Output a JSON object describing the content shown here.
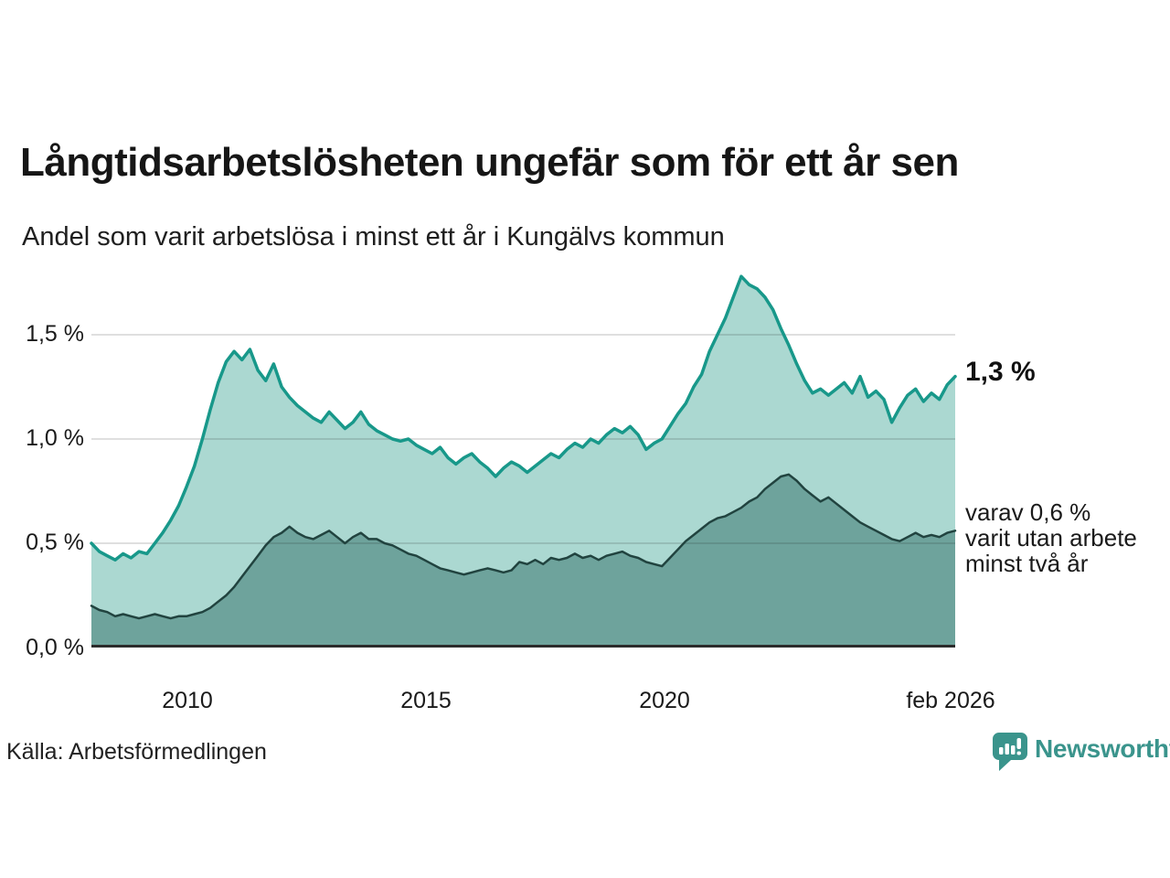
{
  "header": {
    "title": "Långtidsarbetslösheten ungefär som för ett år sen",
    "subtitle": "Andel som varit arbetslösa i minst ett år i Kungälvs kommun"
  },
  "chart_data": {
    "type": "area",
    "title": "Långtidsarbetslösheten ungefär som för ett år sen",
    "subtitle": "Andel som varit arbetslösa i minst ett år i Kungälvs kommun",
    "x_unit": "year",
    "x_start": 2008.0,
    "x_end": 2026.083,
    "ylim": [
      0,
      1.8333
    ],
    "grid": true,
    "y_ticks": [
      {
        "value": 1.5,
        "label": "1,5 %"
      },
      {
        "value": 1.0,
        "label": "1,0 %"
      },
      {
        "value": 0.5,
        "label": "0,5 %"
      },
      {
        "value": 0.0,
        "label": "0,0 %"
      }
    ],
    "x_ticks": [
      {
        "value": 2010,
        "label": "2010"
      },
      {
        "value": 2015,
        "label": "2015"
      },
      {
        "value": 2020,
        "label": "2020"
      },
      {
        "value": 2026.083,
        "label": "feb 2026"
      }
    ],
    "gridline_color": "rgba(30,30,30,0.14)",
    "baseline_color": "#2b2b2b",
    "series": [
      {
        "name": "Andel som varit arbetslösa i minst ett år",
        "stroke": "#18988a",
        "stroke_width": 3.5,
        "fill": "#abd8d1",
        "latest_value_pct": 1.3,
        "values": [
          0.5,
          0.46,
          0.44,
          0.42,
          0.45,
          0.43,
          0.46,
          0.45,
          0.5,
          0.55,
          0.61,
          0.68,
          0.77,
          0.87,
          1.0,
          1.14,
          1.27,
          1.37,
          1.42,
          1.38,
          1.43,
          1.33,
          1.28,
          1.36,
          1.25,
          1.2,
          1.16,
          1.13,
          1.1,
          1.08,
          1.13,
          1.09,
          1.05,
          1.08,
          1.13,
          1.07,
          1.04,
          1.02,
          1.0,
          0.99,
          1.0,
          0.97,
          0.95,
          0.93,
          0.96,
          0.91,
          0.88,
          0.91,
          0.93,
          0.89,
          0.86,
          0.82,
          0.86,
          0.89,
          0.87,
          0.84,
          0.87,
          0.9,
          0.93,
          0.91,
          0.95,
          0.98,
          0.96,
          1.0,
          0.98,
          1.02,
          1.05,
          1.03,
          1.06,
          1.02,
          0.95,
          0.98,
          1.0,
          1.06,
          1.12,
          1.17,
          1.25,
          1.31,
          1.42,
          1.5,
          1.58,
          1.68,
          1.78,
          1.74,
          1.72,
          1.68,
          1.62,
          1.53,
          1.45,
          1.36,
          1.28,
          1.22,
          1.24,
          1.21,
          1.24,
          1.27,
          1.22,
          1.3,
          1.2,
          1.23,
          1.19,
          1.08,
          1.15,
          1.21,
          1.24,
          1.18,
          1.22,
          1.19,
          1.26,
          1.3
        ]
      },
      {
        "name": "varav utan arbete minst två år",
        "stroke": "#21433f",
        "stroke_width": 2.5,
        "fill": "#6ea39c",
        "latest_value_pct": 0.6,
        "values": [
          0.2,
          0.18,
          0.17,
          0.15,
          0.16,
          0.15,
          0.14,
          0.15,
          0.16,
          0.15,
          0.14,
          0.15,
          0.15,
          0.16,
          0.17,
          0.19,
          0.22,
          0.25,
          0.29,
          0.34,
          0.39,
          0.44,
          0.49,
          0.53,
          0.55,
          0.58,
          0.55,
          0.53,
          0.52,
          0.54,
          0.56,
          0.53,
          0.5,
          0.53,
          0.55,
          0.52,
          0.52,
          0.5,
          0.49,
          0.47,
          0.45,
          0.44,
          0.42,
          0.4,
          0.38,
          0.37,
          0.36,
          0.35,
          0.36,
          0.37,
          0.38,
          0.37,
          0.36,
          0.37,
          0.41,
          0.4,
          0.42,
          0.4,
          0.43,
          0.42,
          0.43,
          0.45,
          0.43,
          0.44,
          0.42,
          0.44,
          0.45,
          0.46,
          0.44,
          0.43,
          0.41,
          0.4,
          0.39,
          0.43,
          0.47,
          0.51,
          0.54,
          0.57,
          0.6,
          0.62,
          0.63,
          0.65,
          0.67,
          0.7,
          0.72,
          0.76,
          0.79,
          0.82,
          0.83,
          0.8,
          0.76,
          0.73,
          0.7,
          0.72,
          0.69,
          0.66,
          0.63,
          0.6,
          0.58,
          0.56,
          0.54,
          0.52,
          0.51,
          0.53,
          0.55,
          0.53,
          0.54,
          0.53,
          0.55,
          0.56
        ]
      }
    ]
  },
  "annotations": {
    "latest_value": "1,3 %",
    "note_lines": [
      "varav 0,6 %",
      "varit utan arbete",
      "minst två år"
    ]
  },
  "footer": {
    "source": "Källa: Arbetsförmedlingen",
    "brand": "Newsworthy"
  },
  "colors": {
    "accent_teal": "#18988a",
    "light_fill": "#abd8d1",
    "dark_fill": "#6ea39c",
    "dark_stroke": "#21433f",
    "brand_teal": "#3a948c",
    "text": "#1a1a1a"
  }
}
